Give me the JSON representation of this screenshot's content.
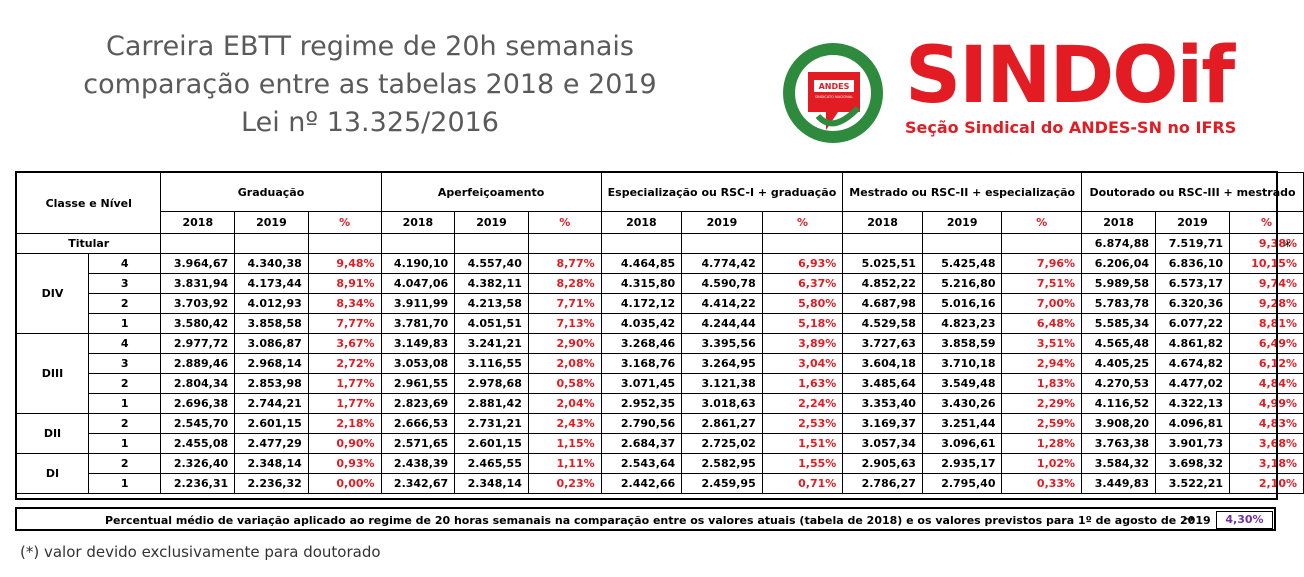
{
  "title": {
    "line1": "Carreira EBTT regime de  20h semanais",
    "line2": "comparação entre as tabelas 2018 e 2019",
    "line3": "Lei nº 13.325/2016"
  },
  "brand": {
    "name": "SINDOif",
    "subtitle": "Seção Sindical do ANDES-SN no IFRS",
    "logo_text": "ANDES",
    "logo_subtext": "SINDICATO NACIONAL",
    "primary_color": "#e31b23",
    "secondary_color": "#2e8b3e"
  },
  "table": {
    "class_header": "Classe e Nível",
    "groups": [
      "Graduação",
      "Aperfeiçoamento",
      "Especialização ou RSC-I + graduação",
      "Mestrado ou RSC-II + especialização",
      "Doutorado ou RSC-III + mestrado"
    ],
    "subheaders": [
      "2018",
      "2019",
      "%"
    ],
    "titular": {
      "label": "Titular",
      "values": [
        "6.874,88",
        "7.519,71",
        "9,38%"
      ],
      "marker": "*"
    },
    "classes": [
      {
        "name": "DIV",
        "rows": [
          {
            "level": "4",
            "values": [
              "3.964,67",
              "4.340,38",
              "9,48%",
              "4.190,10",
              "4.557,40",
              "8,77%",
              "4.464,85",
              "4.774,42",
              "6,93%",
              "5.025,51",
              "5.425,48",
              "7,96%",
              "6.206,04",
              "6.836,10",
              "10,15%"
            ]
          },
          {
            "level": "3",
            "values": [
              "3.831,94",
              "4.173,44",
              "8,91%",
              "4.047,06",
              "4.382,11",
              "8,28%",
              "4.315,80",
              "4.590,78",
              "6,37%",
              "4.852,22",
              "5.216,80",
              "7,51%",
              "5.989,58",
              "6.573,17",
              "9,74%"
            ]
          },
          {
            "level": "2",
            "values": [
              "3.703,92",
              "4.012,93",
              "8,34%",
              "3.911,99",
              "4.213,58",
              "7,71%",
              "4.172,12",
              "4.414,22",
              "5,80%",
              "4.687,98",
              "5.016,16",
              "7,00%",
              "5.783,78",
              "6.320,36",
              "9,28%"
            ]
          },
          {
            "level": "1",
            "values": [
              "3.580,42",
              "3.858,58",
              "7,77%",
              "3.781,70",
              "4.051,51",
              "7,13%",
              "4.035,42",
              "4.244,44",
              "5,18%",
              "4.529,58",
              "4.823,23",
              "6,48%",
              "5.585,34",
              "6.077,22",
              "8,81%"
            ]
          }
        ]
      },
      {
        "name": "DIII",
        "rows": [
          {
            "level": "4",
            "values": [
              "2.977,72",
              "3.086,87",
              "3,67%",
              "3.149,83",
              "3.241,21",
              "2,90%",
              "3.268,46",
              "3.395,56",
              "3,89%",
              "3.727,63",
              "3.858,59",
              "3,51%",
              "4.565,48",
              "4.861,82",
              "6,49%"
            ]
          },
          {
            "level": "3",
            "values": [
              "2.889,46",
              "2.968,14",
              "2,72%",
              "3.053,08",
              "3.116,55",
              "2,08%",
              "3.168,76",
              "3.264,95",
              "3,04%",
              "3.604,18",
              "3.710,18",
              "2,94%",
              "4.405,25",
              "4.674,82",
              "6,12%"
            ]
          },
          {
            "level": "2",
            "values": [
              "2.804,34",
              "2.853,98",
              "1,77%",
              "2.961,55",
              "2.978,68",
              "0,58%",
              "3.071,45",
              "3.121,38",
              "1,63%",
              "3.485,64",
              "3.549,48",
              "1,83%",
              "4.270,53",
              "4.477,02",
              "4,84%"
            ]
          },
          {
            "level": "1",
            "values": [
              "2.696,38",
              "2.744,21",
              "1,77%",
              "2.823,69",
              "2.881,42",
              "2,04%",
              "2.952,35",
              "3.018,63",
              "2,24%",
              "3.353,40",
              "3.430,26",
              "2,29%",
              "4.116,52",
              "4.322,13",
              "4,99%"
            ]
          }
        ]
      },
      {
        "name": "DII",
        "rows": [
          {
            "level": "2",
            "values": [
              "2.545,70",
              "2.601,15",
              "2,18%",
              "2.666,53",
              "2.731,21",
              "2,43%",
              "2.790,56",
              "2.861,27",
              "2,53%",
              "3.169,37",
              "3.251,44",
              "2,59%",
              "3.908,20",
              "4.096,81",
              "4,83%"
            ]
          },
          {
            "level": "1",
            "values": [
              "2.455,08",
              "2.477,29",
              "0,90%",
              "2.571,65",
              "2.601,15",
              "1,15%",
              "2.684,37",
              "2.725,02",
              "1,51%",
              "3.057,34",
              "3.096,61",
              "1,28%",
              "3.763,38",
              "3.901,73",
              "3,68%"
            ]
          }
        ]
      },
      {
        "name": "DI",
        "rows": [
          {
            "level": "2",
            "values": [
              "2.326,40",
              "2.348,14",
              "0,93%",
              "2.438,39",
              "2.465,55",
              "1,11%",
              "2.543,64",
              "2.582,95",
              "1,55%",
              "2.905,63",
              "2.935,17",
              "1,02%",
              "3.584,32",
              "3.698,32",
              "3,18%"
            ]
          },
          {
            "level": "1",
            "values": [
              "2.236,31",
              "2.236,32",
              "0,00%",
              "2.342,67",
              "2.348,14",
              "0,23%",
              "2.442,66",
              "2.459,95",
              "0,71%",
              "2.786,27",
              "2.795,40",
              "0,33%",
              "3.449,83",
              "3.522,21",
              "2,10%"
            ]
          }
        ]
      }
    ]
  },
  "footer": {
    "text": "Percentual médio de variação aplicado ao regime de 20 horas semanais na comparação entre os valores atuais (tabela de 2018) e os valores previstos para 1º de agosto de 2019",
    "arrow": "→",
    "value": "4,30%",
    "value_color": "#7030a0"
  },
  "note": "(*) valor devido exclusivamente para doutorado"
}
